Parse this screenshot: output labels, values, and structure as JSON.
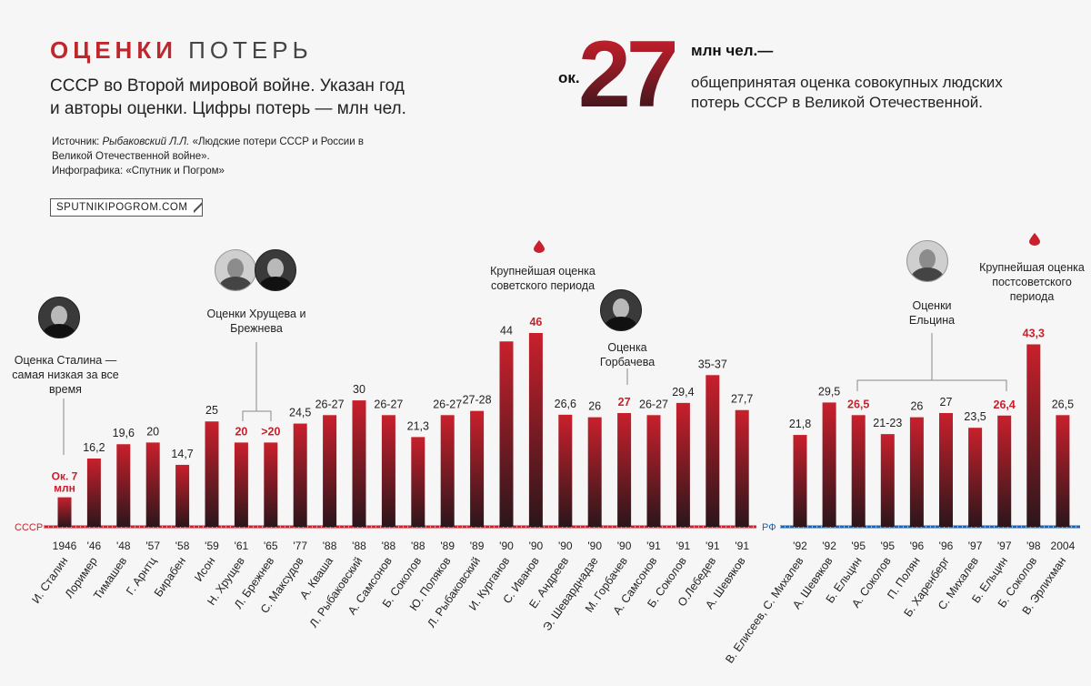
{
  "header": {
    "title_1": "ОЦЕНКИ",
    "title_2": "ПОТЕРЬ",
    "subtitle": "СССР во Второй мировой войне. Указан год и авторы оценки. Цифры потерь — млн чел.",
    "source_label": "Источник: ",
    "source_author": "Рыбаковский Л.Л.",
    "source_rest": " «Людские потери СССР и России в Великой Отечественной войне».",
    "infographic": "Инфографика: «Спутник и Погром»",
    "site": "SPUTNIKIPOGROM.COM"
  },
  "headline": {
    "prefix": "ок.",
    "number": "27",
    "unit": "млн чел.—",
    "description": "общепринятая оценка совокупных людских потерь СССР в Великой Отечественной."
  },
  "annotations": {
    "stalin": "Оценка Сталина — самая низкая за все время",
    "khrushchev_brezhnev": "Оценки Хрущева и Брежнева",
    "soviet_max": "Крупнейшая оценка советского периода",
    "gorbachev": "Оценка Горбачева",
    "yeltsin": "Оценки Ельцина",
    "post_soviet_max": "Крупнейшая оценка постсоветского периода"
  },
  "chart_data": {
    "type": "bar",
    "ylim": [
      0,
      46
    ],
    "colors": {
      "ussr_axis": "#d0202e",
      "rf_axis": "#1c63b3",
      "highlight": "#c8202c",
      "bar_top": "#c8202c",
      "bar_bottom": "#2b161b"
    },
    "groups": [
      {
        "axis_label": "СССР",
        "axis_color": "#d0202e"
      },
      {
        "axis_label": "РФ",
        "axis_color": "#1c63b3"
      }
    ],
    "bars": [
      {
        "group": 0,
        "year": "1946",
        "author": "И. Сталин",
        "value": 7,
        "label": "Ок. 7 млн",
        "highlight": true
      },
      {
        "group": 0,
        "year": "'46",
        "author": "Лоример",
        "value": 16.2,
        "label": "16,2",
        "highlight": false
      },
      {
        "group": 0,
        "year": "'48",
        "author": "Тимашев",
        "value": 19.6,
        "label": "19,6",
        "highlight": false
      },
      {
        "group": 0,
        "year": "'57",
        "author": "Г. Арнтц",
        "value": 20,
        "label": "20",
        "highlight": false
      },
      {
        "group": 0,
        "year": "'58",
        "author": "Бирабен",
        "value": 14.7,
        "label": "14,7",
        "highlight": false
      },
      {
        "group": 0,
        "year": "'59",
        "author": "Исон",
        "value": 25,
        "label": "25",
        "highlight": false
      },
      {
        "group": 0,
        "year": "'61",
        "author": "Н. Хрущев",
        "value": 20,
        "label": "20",
        "highlight": true
      },
      {
        "group": 0,
        "year": "'65",
        "author": "Л. Брежнев",
        "value": 20,
        "label": ">20",
        "highlight": true
      },
      {
        "group": 0,
        "year": "'77",
        "author": "С. Максудов",
        "value": 24.5,
        "label": "24,5",
        "highlight": false
      },
      {
        "group": 0,
        "year": "'88",
        "author": "А. Кваша",
        "value": 26.5,
        "label": "26-27",
        "highlight": false
      },
      {
        "group": 0,
        "year": "'88",
        "author": "Л. Рыбаковский",
        "value": 30,
        "label": "30",
        "highlight": false
      },
      {
        "group": 0,
        "year": "'88",
        "author": "А. Самсонов",
        "value": 26.5,
        "label": "26-27",
        "highlight": false
      },
      {
        "group": 0,
        "year": "'88",
        "author": "Б. Соколов",
        "value": 21.3,
        "label": "21,3",
        "highlight": false
      },
      {
        "group": 0,
        "year": "'89",
        "author": "Ю. Поляков",
        "value": 26.5,
        "label": "26-27",
        "highlight": false
      },
      {
        "group": 0,
        "year": "'89",
        "author": "Л. Рыбаковский",
        "value": 27.5,
        "label": "27-28",
        "highlight": false
      },
      {
        "group": 0,
        "year": "'90",
        "author": "И. Курганов",
        "value": 44,
        "label": "44",
        "highlight": false
      },
      {
        "group": 0,
        "year": "'90",
        "author": "С. Иванов",
        "value": 46,
        "label": "46",
        "highlight": true
      },
      {
        "group": 0,
        "year": "'90",
        "author": "Е. Андреев",
        "value": 26.6,
        "label": "26,6",
        "highlight": false
      },
      {
        "group": 0,
        "year": "'90",
        "author": "Э. Шеварднадзе",
        "value": 26,
        "label": "26",
        "highlight": false
      },
      {
        "group": 0,
        "year": "'90",
        "author": "М. Горбачев",
        "value": 27,
        "label": "27",
        "highlight": true
      },
      {
        "group": 0,
        "year": "'91",
        "author": "А. Самсонов",
        "value": 26.5,
        "label": "26-27",
        "highlight": false
      },
      {
        "group": 0,
        "year": "'91",
        "author": "Б. Соколов",
        "value": 29.4,
        "label": "29,4",
        "highlight": false
      },
      {
        "group": 0,
        "year": "'91",
        "author": "О.Лебедев",
        "value": 36,
        "label": "35-37",
        "highlight": false
      },
      {
        "group": 0,
        "year": "'91",
        "author": "А. Шевяков",
        "value": 27.7,
        "label": "27,7",
        "highlight": false
      },
      {
        "group": 1,
        "year": "'92",
        "author": "В. Елисеев, С. Михалев",
        "value": 21.8,
        "label": "21,8",
        "highlight": false
      },
      {
        "group": 1,
        "year": "'92",
        "author": "А. Шевяков",
        "value": 29.5,
        "label": "29,5",
        "highlight": false
      },
      {
        "group": 1,
        "year": "'95",
        "author": "Б. Ельцин",
        "value": 26.5,
        "label": "26,5",
        "highlight": true
      },
      {
        "group": 1,
        "year": "'95",
        "author": "А. Соколов",
        "value": 22,
        "label": "21-23",
        "highlight": false
      },
      {
        "group": 1,
        "year": "'96",
        "author": "П. Полян",
        "value": 26,
        "label": "26",
        "highlight": false
      },
      {
        "group": 1,
        "year": "'96",
        "author": "Б. Харенберг",
        "value": 27,
        "label": "27",
        "highlight": false
      },
      {
        "group": 1,
        "year": "'97",
        "author": "С. Михалев",
        "value": 23.5,
        "label": "23,5",
        "highlight": false
      },
      {
        "group": 1,
        "year": "'97",
        "author": "Б. Ельцин",
        "value": 26.4,
        "label": "26,4",
        "highlight": true
      },
      {
        "group": 1,
        "year": "'98",
        "author": "Б. Соколов",
        "value": 43.3,
        "label": "43,3",
        "highlight": true
      },
      {
        "group": 1,
        "year": "2004",
        "author": "В. Эрлихман",
        "value": 26.5,
        "label": "26,5",
        "highlight": false
      }
    ]
  }
}
